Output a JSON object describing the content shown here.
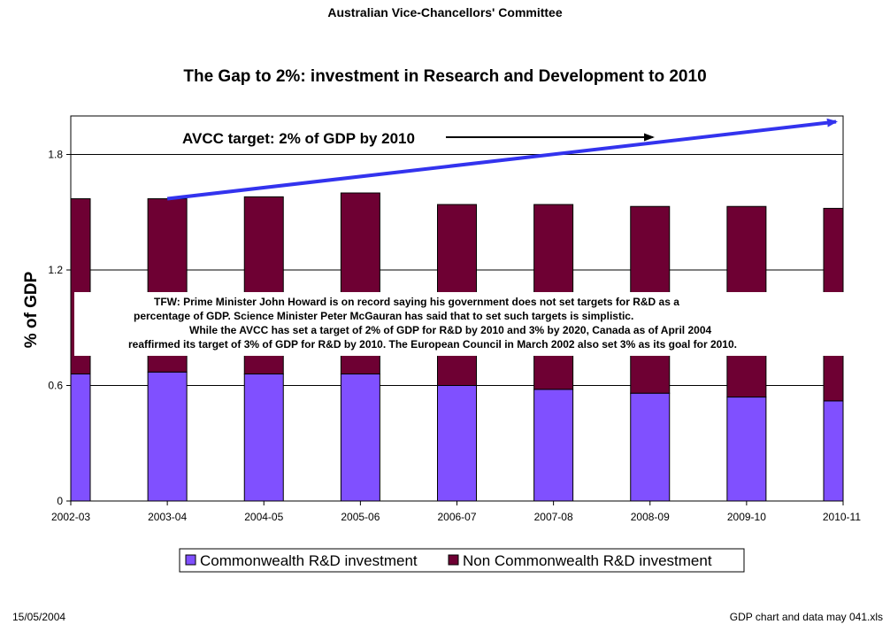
{
  "header": {
    "organization": "Australian Vice-Chancellors' Committee"
  },
  "footer": {
    "date": "15/05/2004",
    "file": "GDP chart and data may 041.xls"
  },
  "annotation": {
    "target_label": "AVCC target: 2% of GDP by 2010",
    "note_lines": [
      "TFW:  Prime Minister John Howard is on record saying his government does not set targets for R&D as a",
      "percentage of GDP. Science Minister Peter McGauran has said that to set such targets is simplistic.",
      "While the AVCC has set a target of 2% of GDP for R&D by 2010 and 3% by 2020, Canada as of April 2004",
      "reaffirmed its target of 3% of GDP for R&D by 2010. The European Council in March 2002 also set 3% as its goal for 2010."
    ]
  },
  "chart_data": {
    "type": "bar",
    "stacked": true,
    "title": "The Gap to 2%: investment in Research and Development to 2010",
    "xlabel": "",
    "ylabel": "% of GDP",
    "ylim": [
      0,
      2.0
    ],
    "y_ticks": [
      0,
      0.6,
      1.2,
      1.8
    ],
    "y_tick_labels": [
      "0",
      "0.6",
      "1.2",
      "1.8"
    ],
    "grid": "horizontal",
    "legend_position": "bottom",
    "categories": [
      "2002-03",
      "2003-04",
      "2004-05",
      "2005-06",
      "2006-07",
      "2007-08",
      "2008-09",
      "2009-10",
      "2010-11"
    ],
    "series": [
      {
        "name": "Commonwealth R&D investment",
        "color": "#8050ff",
        "values": [
          0.66,
          0.67,
          0.66,
          0.66,
          0.6,
          0.58,
          0.56,
          0.54,
          0.52
        ]
      },
      {
        "name": "Non Commonwealth R&D investment",
        "color": "#6e0033",
        "values": [
          0.91,
          0.9,
          0.92,
          0.94,
          0.94,
          0.96,
          0.97,
          0.99,
          1.0
        ]
      }
    ],
    "target_line": {
      "start": {
        "x": "2003-04",
        "y": 1.57
      },
      "end": {
        "x": "2010-11",
        "y": 1.97
      },
      "color": "#3333ee"
    }
  }
}
